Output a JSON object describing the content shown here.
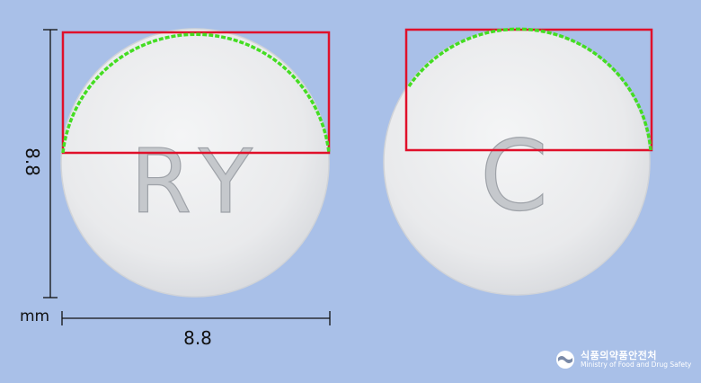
{
  "image": {
    "background_color": "#a9c0e8",
    "overlay_box_color": "#e0102a",
    "overlay_curve_color": "#44dd22"
  },
  "pills": {
    "front": {
      "imprint": "RY"
    },
    "back": {
      "imprint": "C"
    }
  },
  "dimensions": {
    "width": "8.8",
    "height": "8.8",
    "unit": "mm"
  },
  "logo": {
    "korean": "식품의약품안전처",
    "english": "Ministry of Food and Drug Safety"
  }
}
